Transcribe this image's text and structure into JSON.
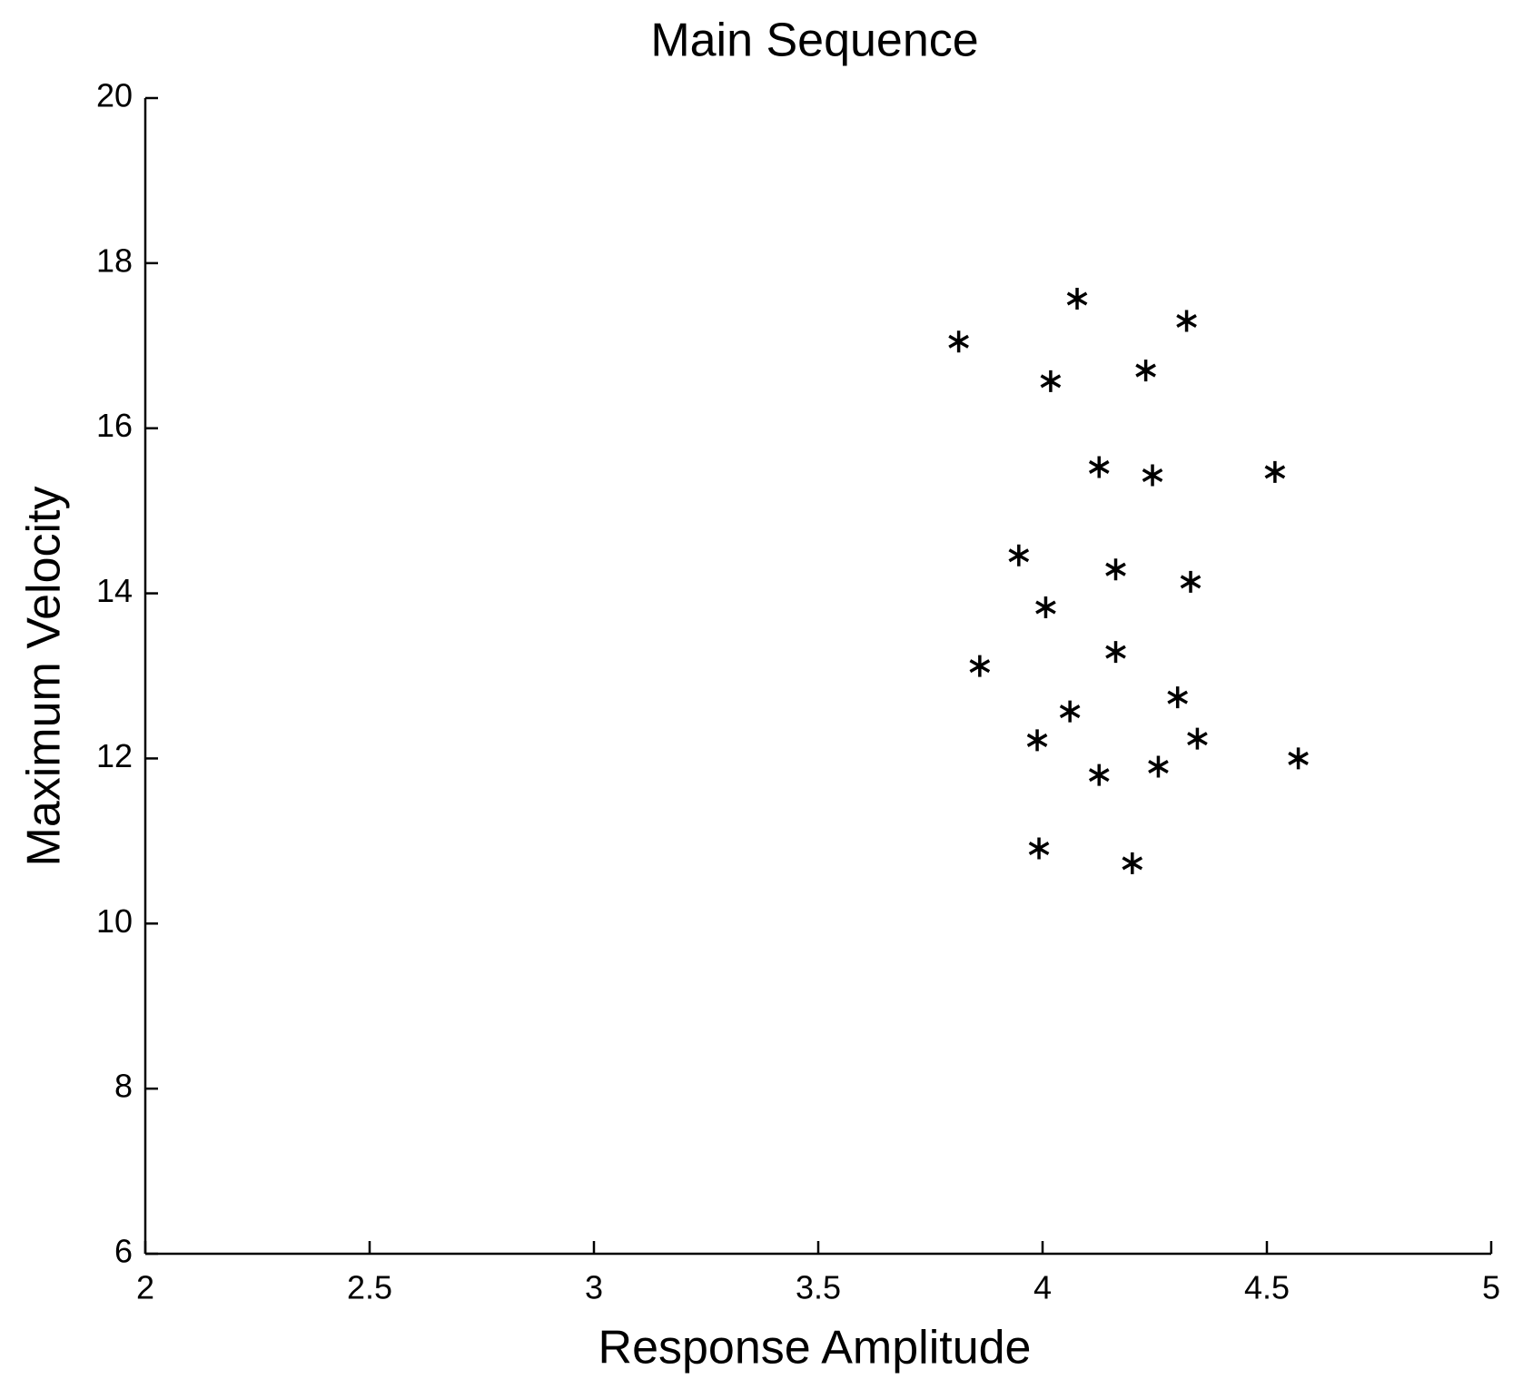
{
  "chart_data": {
    "type": "scatter",
    "title": "Main Sequence",
    "xlabel": "Response Amplitude",
    "ylabel": "Maximum Velocity",
    "x": [
      3.813,
      4.077,
      4.321,
      4.018,
      4.23,
      4.126,
      4.245,
      4.518,
      3.947,
      4.163,
      4.33,
      4.007,
      3.86,
      4.163,
      4.061,
      4.301,
      3.988,
      4.345,
      4.57,
      4.126,
      4.258,
      3.992,
      4.2
    ],
    "y": [
      17.05,
      17.57,
      17.3,
      16.57,
      16.7,
      15.53,
      15.43,
      15.47,
      14.46,
      14.29,
      14.14,
      13.83,
      13.12,
      13.29,
      12.57,
      12.74,
      12.22,
      12.24,
      12.0,
      11.8,
      11.9,
      10.91,
      10.73
    ],
    "color": "#000000",
    "marker": "asterisk",
    "xlim": [
      2,
      5
    ],
    "xticks": [
      2,
      2.5,
      3,
      3.5,
      4,
      4.5,
      5
    ],
    "ylim": [
      6,
      20
    ],
    "yticks": [
      6,
      8,
      10,
      12,
      14,
      16,
      18,
      20
    ]
  }
}
